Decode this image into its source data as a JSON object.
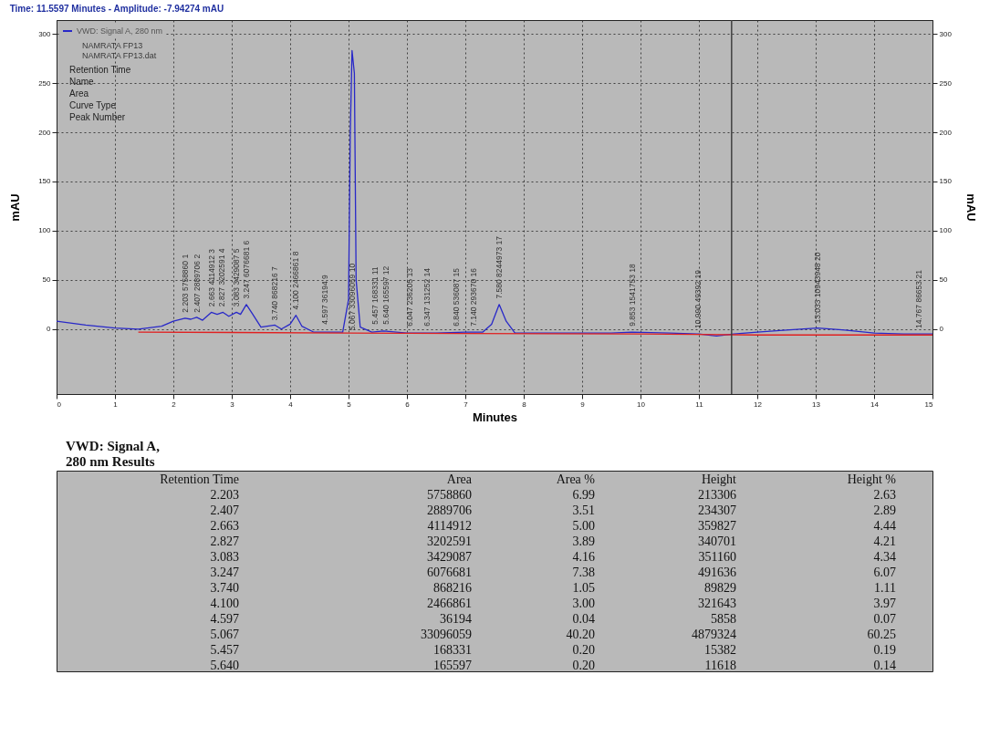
{
  "chart_data": [
    {
      "type": "line",
      "title": "Time: 11.5597 Minutes - Amplitude: -7.94274 mAU",
      "xlabel": "Minutes",
      "ylabel": "mAU",
      "y2label": "mAU",
      "xlim": [
        0,
        15
      ],
      "xticks": [
        0,
        1,
        2,
        3,
        4,
        5,
        6,
        7,
        8,
        9,
        10,
        11,
        12,
        13,
        14,
        15
      ],
      "ylim": [
        -66,
        314
      ],
      "yticks": [
        0,
        50,
        100,
        150,
        200,
        250,
        300
      ],
      "y2lim": [
        -66,
        314
      ],
      "y2ticks": [
        0,
        50,
        100,
        150,
        200,
        250,
        300
      ],
      "grid": true,
      "legend": "top left",
      "series": [
        {
          "name": "VWD: Signal A, 280 nm",
          "color": "#2828c8",
          "x": [
            0,
            0.5,
            1,
            1.4,
            1.8,
            2.0,
            2.2,
            2.3,
            2.4,
            2.5,
            2.65,
            2.75,
            2.85,
            2.95,
            3.08,
            3.15,
            3.25,
            3.35,
            3.5,
            3.74,
            3.85,
            4.0,
            4.1,
            4.2,
            4.4,
            4.6,
            4.9,
            5.0,
            5.03,
            5.06,
            5.1,
            5.13,
            5.2,
            5.4,
            5.6,
            6.0,
            6.5,
            7.0,
            7.3,
            7.45,
            7.58,
            7.7,
            7.85,
            8.5,
            9.5,
            9.85,
            10.5,
            11.0,
            11.3,
            11.6,
            12.0,
            12.5,
            13.03,
            13.5,
            14.0,
            14.5,
            15.0
          ],
          "values": [
            8,
            4,
            1,
            0,
            3,
            8,
            11,
            10,
            12,
            9,
            17,
            15,
            17,
            13,
            17,
            15,
            25,
            16,
            2,
            4,
            0,
            5,
            14,
            3,
            -3,
            -3,
            -3,
            30,
            200,
            283,
            260,
            50,
            2,
            -3,
            -2,
            -4,
            -4,
            -3,
            -3,
            5,
            25,
            8,
            -4,
            -4,
            -4,
            -3,
            -4,
            -5,
            -7,
            -5,
            -3,
            -1,
            1,
            -1,
            -4,
            -5,
            -5
          ]
        },
        {
          "color": "#e02020",
          "x": [
            1.4,
            5.0,
            10.0,
            12.0,
            15.0
          ],
          "values": [
            -3,
            -4,
            -5,
            -6,
            -6
          ]
        }
      ],
      "ref_lines": [
        {
          "axis": "x",
          "value": 11.5597,
          "color": "#404040"
        }
      ],
      "annotations": [
        "NAMRATA FP13",
        "NAMRATA FP13.dat",
        "Retention Time",
        "Name",
        "Area",
        "Curve Type",
        "Peak Number",
        {
          "text": "2.203   5758860   1",
          "x": 2.203,
          "y": 14
        },
        {
          "text": "2.407   2889706   2",
          "x": 2.407,
          "y": 14
        },
        {
          "text": "2.663   4114912   3",
          "x": 2.663,
          "y": 20
        },
        {
          "text": "2.827   3202591   4",
          "x": 2.827,
          "y": 20
        },
        {
          "text": "3.083   3429087   5",
          "x": 3.083,
          "y": 20
        },
        {
          "text": "3.247   6076681   6",
          "x": 3.247,
          "y": 28
        },
        {
          "text": "3.740   868216   7",
          "x": 3.74,
          "y": 6
        },
        {
          "text": "4.100   2466861   8",
          "x": 4.1,
          "y": 17
        },
        {
          "text": "4.597   36194   9",
          "x": 4.597,
          "y": 2
        },
        {
          "text": "5.067   33096059   10",
          "x": 5.067,
          "y": -4
        },
        {
          "text": "5.457   168331   11",
          "x": 5.457,
          "y": 2
        },
        {
          "text": "5.640   165597   12",
          "x": 5.64,
          "y": 2
        },
        {
          "text": "6.047   236205   13",
          "x": 6.047,
          "y": 0
        },
        {
          "text": "6.347   131252   14",
          "x": 6.347,
          "y": 0
        },
        {
          "text": "6.840   536087   15",
          "x": 6.84,
          "y": 0
        },
        {
          "text": "7.140   293670   16",
          "x": 7.14,
          "y": 0
        },
        {
          "text": "7.580   8244973   17",
          "x": 7.58,
          "y": 28
        },
        {
          "text": "9.853   1541753   18",
          "x": 9.853,
          "y": 0
        },
        {
          "text": "10.990   49392   19",
          "x": 10.99,
          "y": -2
        },
        {
          "text": "13.033   10943948   20",
          "x": 13.033,
          "y": 3
        },
        {
          "text": "14.767   86653   21",
          "x": 14.767,
          "y": -2
        }
      ]
    },
    {
      "type": "other",
      "title": "VWD: Signal A,\n280 nm Results",
      "annotations": [
        "Retention Time\tArea\tArea %\tHeight\tHeight %",
        "2.203\t5758860\t6.99\t213306\t2.63",
        "2.407\t2889706\t3.51\t234307\t2.89",
        "2.663\t4114912\t5.00\t359827\t4.44",
        "2.827\t3202591\t3.89\t340701\t4.21",
        "3.083\t3429087\t4.16\t351160\t4.34",
        "3.247\t6076681\t7.38\t491636\t6.07",
        "3.740\t868216\t1.05\t89829\t1.11",
        "4.100\t2466861\t3.00\t321643\t3.97",
        "4.597\t36194\t0.04\t5858\t0.07",
        "5.067\t33096059\t40.20\t4879324\t60.25",
        "5.457\t168331\t0.20\t15382\t0.19",
        "5.640\t165597\t0.20\t11618\t0.14"
      ]
    }
  ]
}
